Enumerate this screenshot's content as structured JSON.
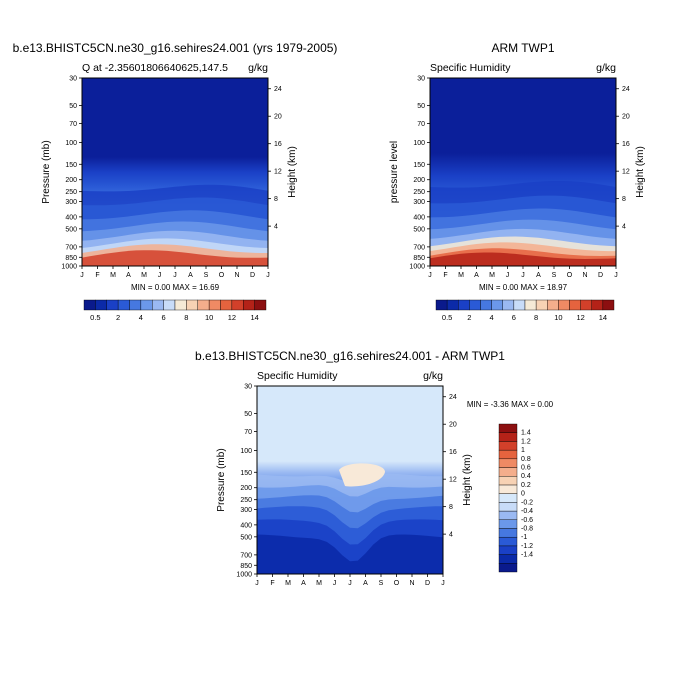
{
  "chart_data": [
    {
      "type": "heatmap",
      "title": "b.e13.BHISTC5CN.ne30_g16.sehires24.001 (yrs 1979-2005)",
      "subtitle_left": "Q at -2.35601806640625,147.5",
      "subtitle_right": "g/kg",
      "ylabel": "Pressure (mb)",
      "y2label": "Height (km)",
      "x_ticks": [
        "J",
        "F",
        "M",
        "A",
        "M",
        "J",
        "J",
        "A",
        "S",
        "O",
        "N",
        "D",
        "J"
      ],
      "y_ticks": [
        "30",
        "50",
        "70",
        "100",
        "150",
        "200",
        "250",
        "300",
        "400",
        "500",
        "700",
        "850",
        "1000"
      ],
      "y2_ticks": [
        "24",
        "20",
        "16",
        "12",
        "8",
        "4"
      ],
      "stats": "MIN =   0.00 MAX =  16.69",
      "min": 0.0,
      "max": 16.69,
      "colorbar_ticks": [
        "0.5",
        "2",
        "4",
        "6",
        "8",
        "10",
        "12",
        "14"
      ]
    },
    {
      "type": "heatmap",
      "title": "ARM TWP1",
      "subtitle_left": "Specific Humidity",
      "subtitle_right": "g/kg",
      "ylabel": "pressure level",
      "y2label": "Height (km)",
      "x_ticks": [
        "J",
        "F",
        "M",
        "A",
        "M",
        "J",
        "J",
        "A",
        "S",
        "O",
        "N",
        "D",
        "J"
      ],
      "y_ticks": [
        "30",
        "50",
        "70",
        "100",
        "150",
        "200",
        "250",
        "300",
        "400",
        "500",
        "700",
        "850",
        "1000"
      ],
      "y2_ticks": [
        "24",
        "20",
        "16",
        "12",
        "8",
        "4"
      ],
      "stats": "MIN =   0.00 MAX =  18.97",
      "min": 0.0,
      "max": 18.97,
      "colorbar_ticks": [
        "0.5",
        "2",
        "4",
        "6",
        "8",
        "10",
        "12",
        "14"
      ]
    },
    {
      "type": "heatmap",
      "title": "b.e13.BHISTC5CN.ne30_g16.sehires24.001 - ARM TWP1",
      "subtitle_left": "Specific Humidity",
      "subtitle_right": "g/kg",
      "ylabel": "Pressure (mb)",
      "y2label": "Height (km)",
      "x_ticks": [
        "J",
        "F",
        "M",
        "A",
        "M",
        "J",
        "J",
        "A",
        "S",
        "O",
        "N",
        "D",
        "J"
      ],
      "y_ticks": [
        "30",
        "50",
        "70",
        "100",
        "150",
        "200",
        "250",
        "300",
        "400",
        "500",
        "700",
        "850",
        "1000"
      ],
      "y2_ticks": [
        "24",
        "20",
        "16",
        "12",
        "8",
        "4"
      ],
      "stats": "MIN =  -3.36 MAX =   0.00",
      "min": -3.36,
      "max": 0.0,
      "colorbar_ticks": [
        "1.4",
        "1.2",
        "1",
        "0.8",
        "0.6",
        "0.4",
        "0.2",
        "0",
        "-0.2",
        "-0.4",
        "-0.6",
        "-0.8",
        "-1",
        "-1.2",
        "-1.4"
      ]
    }
  ]
}
